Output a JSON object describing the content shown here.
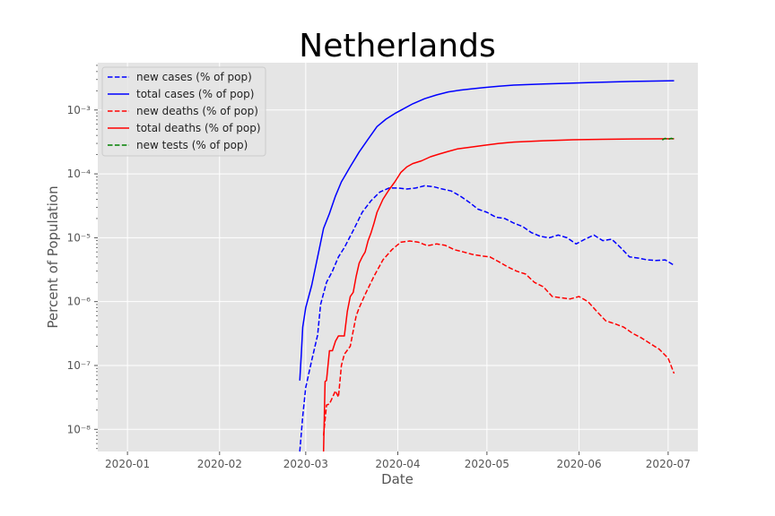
{
  "chart_data": {
    "type": "line",
    "title": "Netherlands",
    "xlabel": "Date",
    "ylabel": "Percent of Population",
    "yscale": "log",
    "ylim": [
      4.5e-09,
      0.0055
    ],
    "xlim": [
      -10,
      192
    ],
    "grid": true,
    "style": "ggplot",
    "legend_position": "top-left",
    "x_tick_labels": [
      {
        "day": 0,
        "label": "2020-01"
      },
      {
        "day": 31,
        "label": "2020-02"
      },
      {
        "day": 60,
        "label": "2020-03"
      },
      {
        "day": 91,
        "label": "2020-04"
      },
      {
        "day": 121,
        "label": "2020-05"
      },
      {
        "day": 152,
        "label": "2020-06"
      },
      {
        "day": 182,
        "label": "2020-07"
      }
    ],
    "y_tick_labels": [
      {
        "exp": -8,
        "label": "10⁻⁸"
      },
      {
        "exp": -7,
        "label": "10⁻⁷"
      },
      {
        "exp": -6,
        "label": "10⁻⁶"
      },
      {
        "exp": -5,
        "label": "10⁻⁵"
      },
      {
        "exp": -4,
        "label": "10⁻⁴"
      },
      {
        "exp": -3,
        "label": "10⁻³"
      }
    ],
    "x_unit": "days since 2020-01-01",
    "series": [
      {
        "name": "new cases (% of pop)",
        "color": "#0000ff",
        "dash": "dashed",
        "x": [
          58,
          59,
          60,
          62,
          64,
          65,
          67,
          69,
          71,
          73,
          76,
          79,
          82,
          85,
          88,
          91,
          94,
          97,
          100,
          103,
          106,
          109,
          112,
          115,
          118,
          121,
          124,
          127,
          130,
          133,
          136,
          139,
          142,
          145,
          148,
          151,
          154,
          157,
          160,
          163,
          166,
          169,
          172,
          175,
          178,
          181,
          184
        ],
        "y": [
          4.5e-09,
          1.6e-08,
          4.5e-08,
          1.2e-07,
          3e-07,
          9e-07,
          2e-06,
          3e-06,
          5e-06,
          7e-06,
          1.3e-05,
          2.5e-05,
          3.8e-05,
          5.2e-05,
          6e-05,
          6e-05,
          5.8e-05,
          6e-05,
          6.5e-05,
          6.3e-05,
          5.8e-05,
          5.4e-05,
          4.5e-05,
          3.6e-05,
          2.8e-05,
          2.5e-05,
          2.1e-05,
          2e-05,
          1.7e-05,
          1.5e-05,
          1.2e-05,
          1.05e-05,
          1e-05,
          1.1e-05,
          1e-05,
          8e-06,
          9.5e-06,
          1.1e-05,
          9e-06,
          9.5e-06,
          7e-06,
          5e-06,
          4.8e-06,
          4.5e-06,
          4.4e-06,
          4.5e-06,
          3.7e-06
        ]
      },
      {
        "name": "total cases (% of pop)",
        "color": "#0000ff",
        "dash": "solid",
        "x": [
          58,
          58.5,
          59,
          60,
          62,
          64,
          66,
          68,
          70,
          72,
          75,
          78,
          81,
          84,
          87,
          90,
          93,
          96,
          100,
          104,
          108,
          112,
          116,
          120,
          125,
          130,
          140,
          150,
          160,
          170,
          184
        ],
        "y": [
          5.8e-08,
          1.5e-07,
          4e-07,
          8e-07,
          1.8e-06,
          5e-06,
          1.4e-05,
          2.4e-05,
          4.5e-05,
          7.5e-05,
          0.00013,
          0.00022,
          0.00035,
          0.00055,
          0.00072,
          0.00088,
          0.00105,
          0.00125,
          0.0015,
          0.00172,
          0.00192,
          0.00205,
          0.00215,
          0.00225,
          0.00235,
          0.00245,
          0.00255,
          0.00263,
          0.00272,
          0.0028,
          0.00287
        ]
      },
      {
        "name": "new deaths (% of pop)",
        "color": "#ff0000",
        "dash": "dashed",
        "x": [
          66,
          67,
          68,
          70,
          71,
          72,
          73,
          75,
          76,
          77,
          78,
          80,
          83,
          86,
          89,
          92,
          95,
          98,
          101,
          104,
          107,
          110,
          113,
          116,
          119,
          122,
          125,
          128,
          131,
          134,
          137,
          140,
          143,
          146,
          149,
          152,
          155,
          158,
          161,
          164,
          167,
          170,
          173,
          176,
          179,
          182,
          184
        ],
        "y": [
          8e-09,
          2.4e-08,
          2.5e-08,
          4e-08,
          3.2e-08,
          1e-07,
          1.5e-07,
          2e-07,
          3.5e-07,
          6e-07,
          8e-07,
          1.3e-06,
          2.5e-06,
          4.5e-06,
          6.5e-06,
          8.5e-06,
          8.9e-06,
          8.5e-06,
          7.5e-06,
          8e-06,
          7.6e-06,
          6.5e-06,
          6e-06,
          5.5e-06,
          5.2e-06,
          5e-06,
          4.2e-06,
          3.5e-06,
          3e-06,
          2.7e-06,
          2e-06,
          1.7e-06,
          1.2e-06,
          1.15e-06,
          1.1e-06,
          1.2e-06,
          1e-06,
          7e-07,
          5e-07,
          4.5e-07,
          4e-07,
          3.2e-07,
          2.7e-07,
          2.2e-07,
          1.8e-07,
          1.3e-07,
          7.5e-08
        ]
      },
      {
        "name": "total deaths (% of pop)",
        "color": "#ff0000",
        "dash": "solid",
        "x": [
          66,
          66.5,
          67,
          68,
          69,
          70,
          71,
          72,
          73,
          74,
          75,
          76,
          77,
          78,
          79,
          80,
          81,
          82,
          83,
          84,
          86,
          88,
          90,
          92,
          94,
          96,
          99,
          102,
          105,
          108,
          111,
          115,
          120,
          125,
          130,
          140,
          150,
          160,
          170,
          184
        ],
        "y": [
          4.5e-09,
          5.6e-08,
          5.8e-08,
          1.7e-07,
          1.7e-07,
          2.4e-07,
          2.9e-07,
          2.9e-07,
          2.9e-07,
          7e-07,
          1.2e-06,
          1.4e-06,
          2.5e-06,
          4e-06,
          5e-06,
          6e-06,
          9e-06,
          1.2e-05,
          1.7e-05,
          2.5e-05,
          4e-05,
          5.6e-05,
          7.5e-05,
          0.000105,
          0.000128,
          0.000145,
          0.00016,
          0.000185,
          0.000205,
          0.000225,
          0.000245,
          0.00026,
          0.00028,
          0.0003,
          0.000315,
          0.00033,
          0.000342,
          0.000348,
          0.000352,
          0.000355
        ]
      },
      {
        "name": "new tests (% of pop)",
        "color": "#008000",
        "dash": "dashed",
        "x": [
          180,
          181,
          182,
          183,
          184
        ],
        "y": [
          0.00034,
          0.00036,
          0.000345,
          0.00036,
          0.00035
        ]
      }
    ]
  }
}
